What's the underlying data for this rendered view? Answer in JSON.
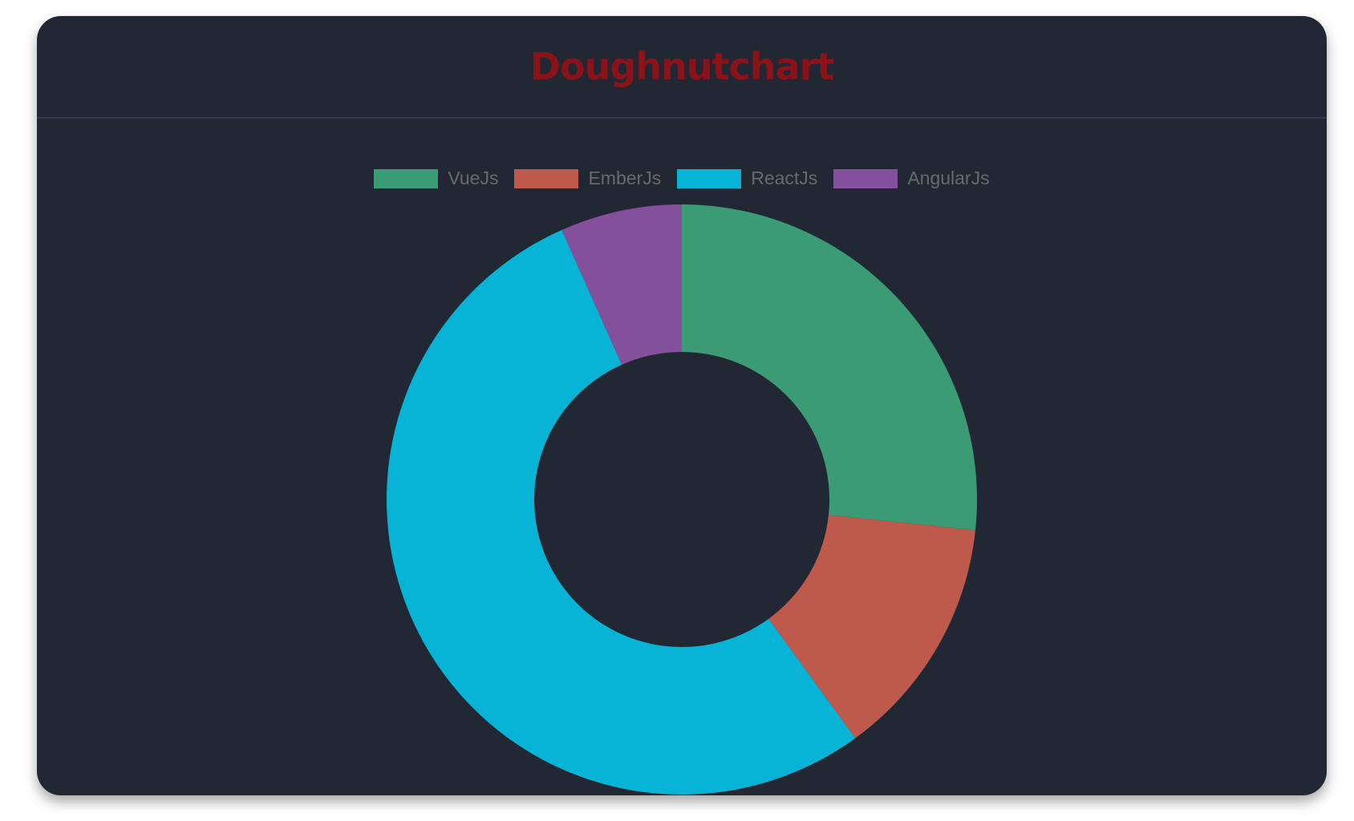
{
  "chart_data": {
    "type": "doughnut",
    "title": "Doughnutchart",
    "categories": [
      "VueJs",
      "EmberJs",
      "ReactJs",
      "AngularJs"
    ],
    "values": [
      20,
      10,
      40,
      5
    ],
    "colors": [
      "#3b9b74",
      "#be5a4b",
      "#07b4d6",
      "#84509b"
    ],
    "legend": "top"
  }
}
